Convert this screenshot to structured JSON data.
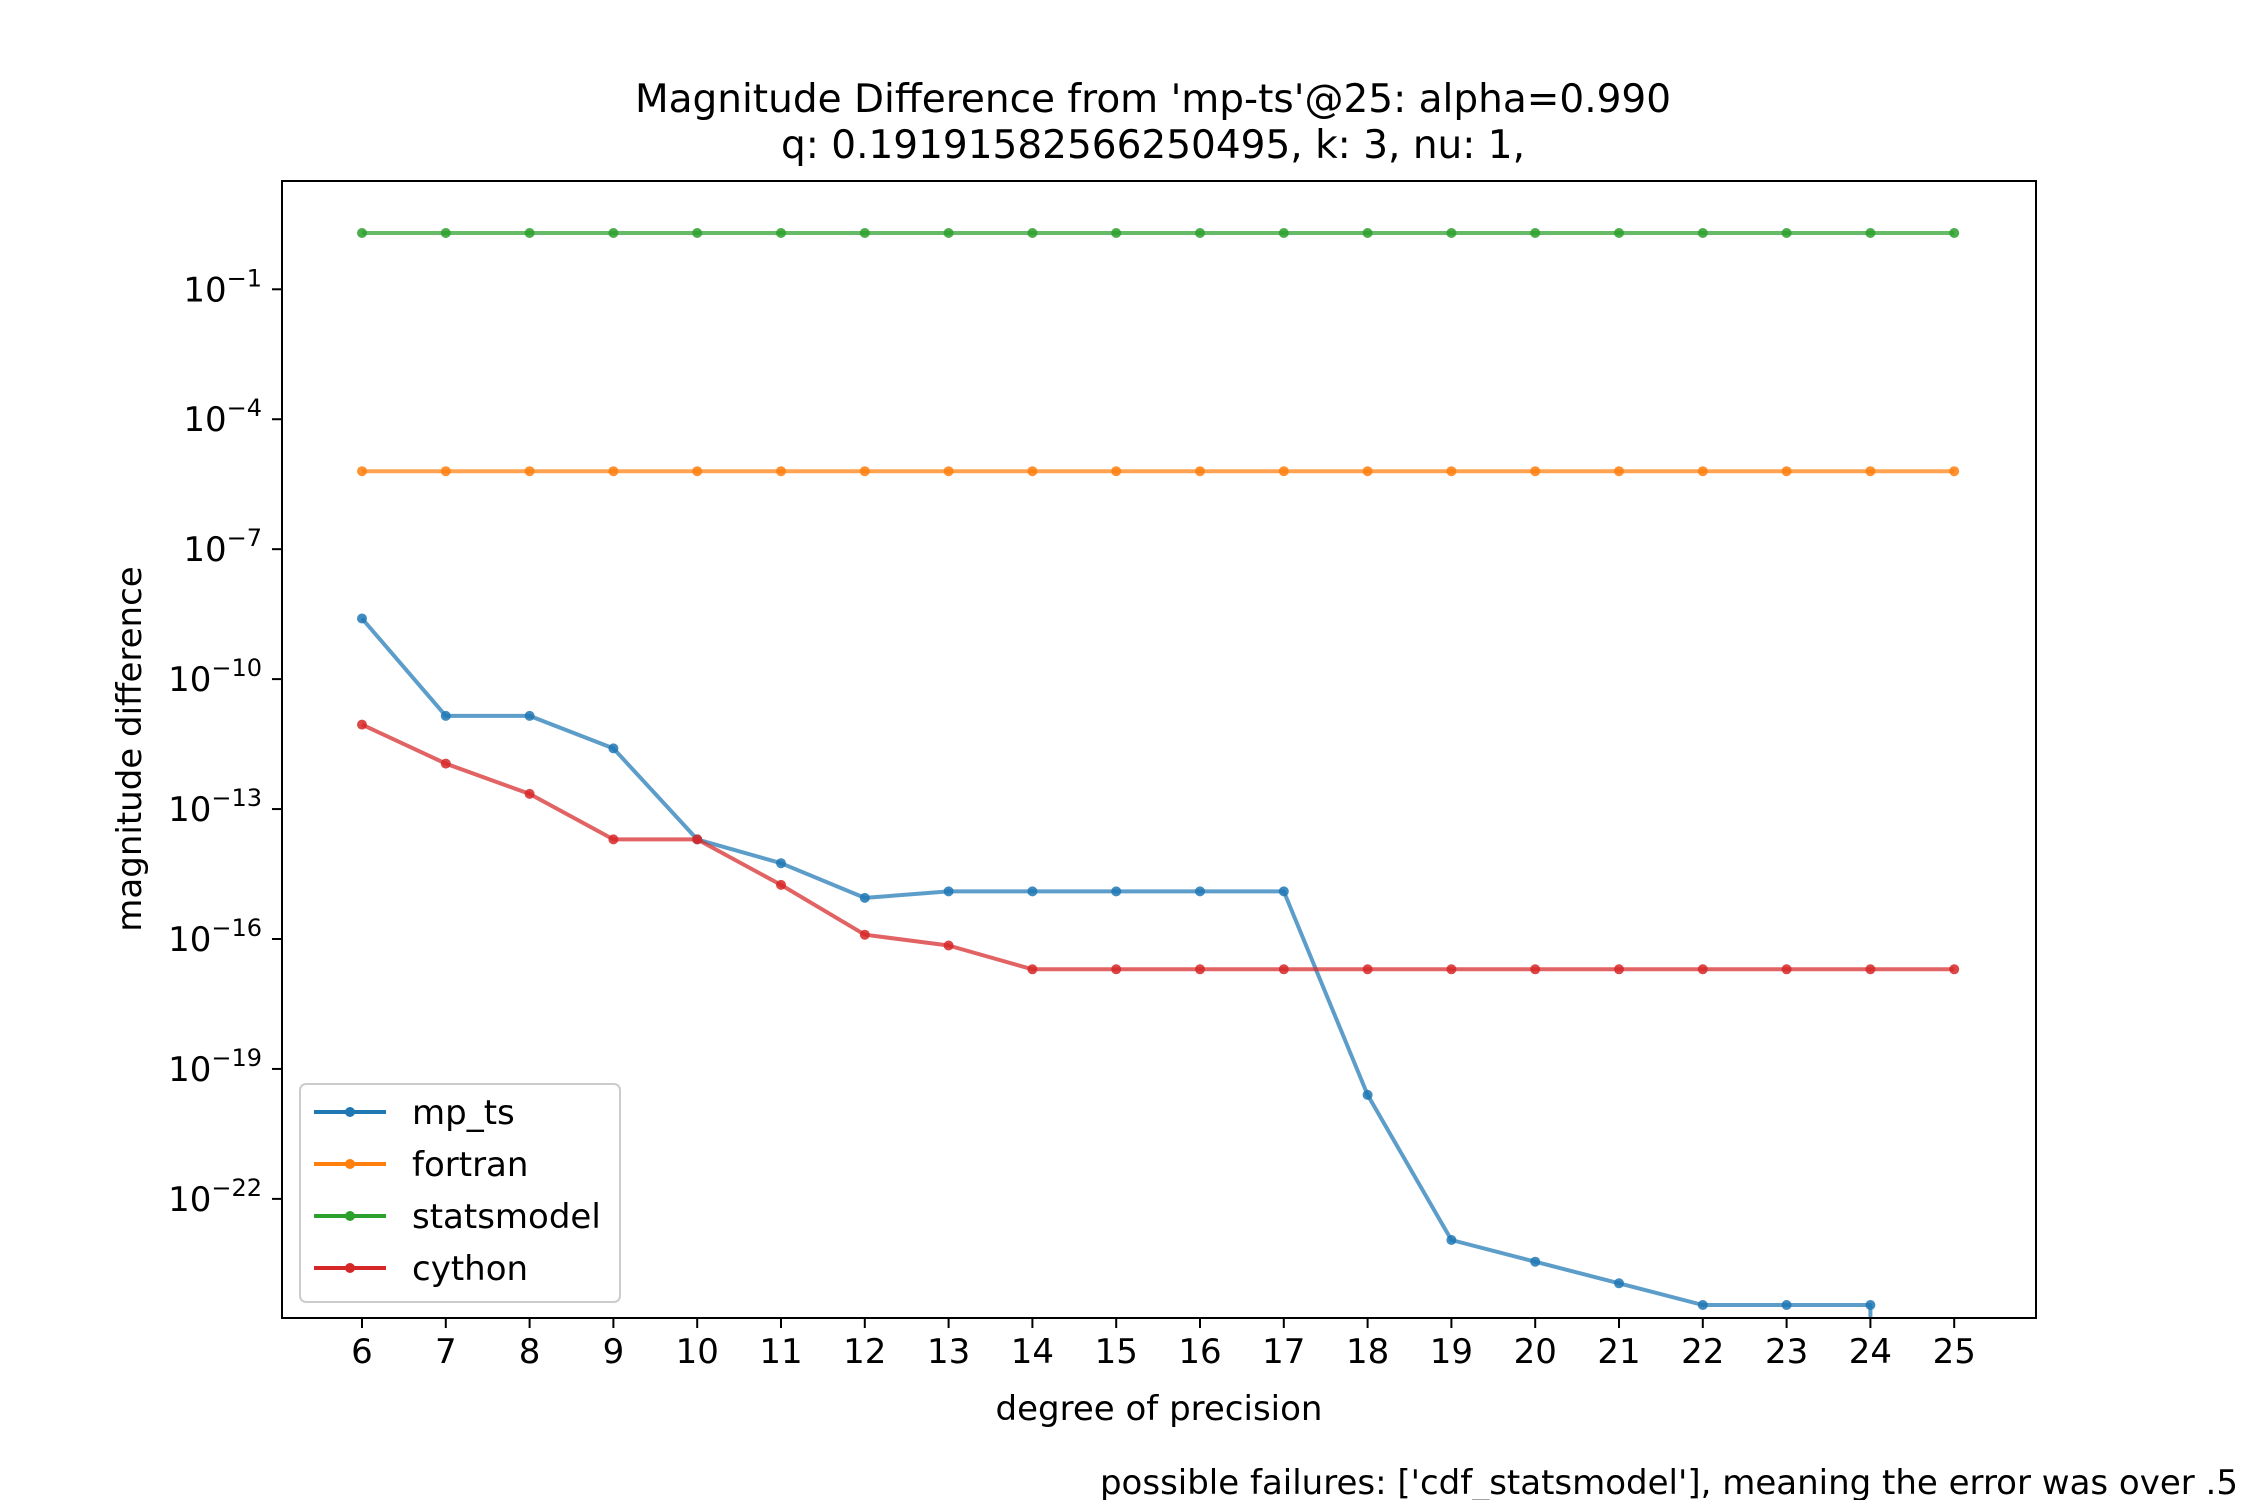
{
  "chart_data": {
    "type": "line",
    "title": "Magnitude Difference from 'mp-ts'@25: alpha=0.990",
    "subtitle": "q: 0.19191582566250495, k: 3, nu: 1,",
    "xlabel": "degree of precision",
    "ylabel": "magnitude difference",
    "footnote": "possible failures: ['cdf_statsmodel'], meaning the error was over .5",
    "yscale": "log",
    "ylim_log10": [
      -24.75,
      1.5
    ],
    "ytick_exponents": [
      -1,
      -4,
      -7,
      -10,
      -13,
      -16,
      -19,
      -22
    ],
    "ytick_labels": [
      "−1",
      "−4",
      "−7",
      "−10",
      "−13",
      "−16",
      "−19",
      "−22"
    ],
    "ytick_base": "10",
    "x": [
      6,
      7,
      8,
      9,
      10,
      11,
      12,
      13,
      14,
      15,
      16,
      17,
      18,
      19,
      20,
      21,
      22,
      23,
      24,
      25
    ],
    "xtick_labels": [
      "6",
      "7",
      "8",
      "9",
      "10",
      "11",
      "12",
      "13",
      "14",
      "15",
      "16",
      "17",
      "18",
      "19",
      "20",
      "21",
      "22",
      "23",
      "24",
      "25"
    ],
    "grid": false,
    "legend_position": "lower-left",
    "series": [
      {
        "name": "mp_ts",
        "color": "#1f77b4",
        "log10_values": [
          -8.6,
          -10.85,
          -10.85,
          -11.6,
          -13.7,
          -14.25,
          -15.05,
          -14.9,
          -14.9,
          -14.9,
          -14.9,
          -14.9,
          -19.6,
          -22.95,
          -23.45,
          -23.95,
          -24.45,
          -24.45,
          -24.45,
          null
        ],
        "drop_to_bottom_after_x": 24
      },
      {
        "name": "fortran",
        "color": "#ff7f0e",
        "log10_values": [
          -5.2,
          -5.2,
          -5.2,
          -5.2,
          -5.2,
          -5.2,
          -5.2,
          -5.2,
          -5.2,
          -5.2,
          -5.2,
          -5.2,
          -5.2,
          -5.2,
          -5.2,
          -5.2,
          -5.2,
          -5.2,
          -5.2,
          -5.2
        ]
      },
      {
        "name": "statsmodel",
        "color": "#2ca02c",
        "log10_values": [
          0.3,
          0.3,
          0.3,
          0.3,
          0.3,
          0.3,
          0.3,
          0.3,
          0.3,
          0.3,
          0.3,
          0.3,
          0.3,
          0.3,
          0.3,
          0.3,
          0.3,
          0.3,
          0.3,
          0.3
        ]
      },
      {
        "name": "cython",
        "color": "#d62728",
        "log10_values": [
          -11.05,
          -11.95,
          -12.65,
          -13.7,
          -13.7,
          -14.75,
          -15.9,
          -16.15,
          -16.7,
          -16.7,
          -16.7,
          -16.7,
          -16.7,
          -16.7,
          -16.7,
          -16.7,
          -16.7,
          -16.7,
          -16.7,
          -16.7
        ]
      }
    ]
  }
}
